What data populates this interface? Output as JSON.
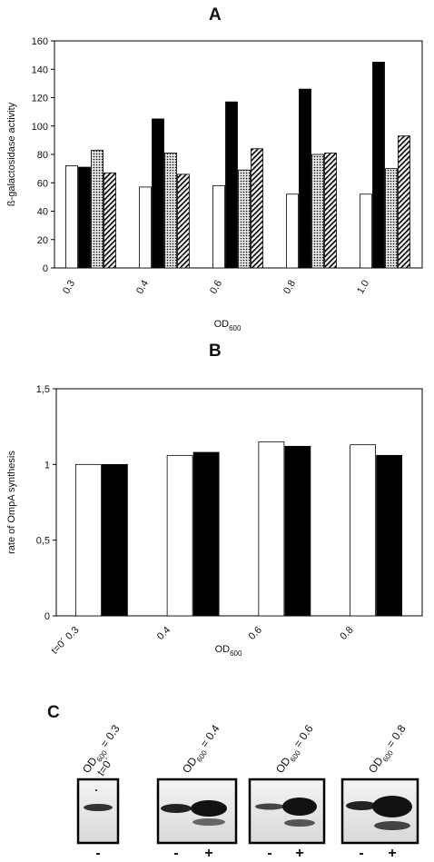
{
  "chart_data": [
    {
      "type": "bar",
      "panel_label": "A",
      "y_label": "ß-galactosidase activity",
      "x_label": [
        "OD",
        "600"
      ],
      "categories": [
        "0.3",
        "0.4",
        "0.6",
        "0.8",
        "1.0"
      ],
      "series": [
        {
          "color": "#ffffff",
          "pattern": "solid",
          "values": [
            72,
            57,
            58,
            52,
            52
          ]
        },
        {
          "color": "#000000",
          "pattern": "solid",
          "values": [
            71,
            105,
            117,
            126,
            145
          ]
        },
        {
          "color": "#9a9a9a",
          "pattern": "dots",
          "values": [
            83,
            81,
            69,
            80,
            70
          ]
        },
        {
          "color": "#555555",
          "pattern": "hatch",
          "values": [
            67,
            66,
            84,
            81,
            93
          ]
        }
      ],
      "ylim": [
        0,
        160
      ],
      "yticks": [
        0,
        20,
        40,
        60,
        80,
        100,
        120,
        140,
        160
      ]
    },
    {
      "type": "bar",
      "panel_label": "B",
      "y_label": "rate of OmpA synthesis",
      "x_label": [
        "OD",
        "600"
      ],
      "categories": [
        "t=0´ 0.3",
        "0.4",
        "0.6",
        "0.8"
      ],
      "series": [
        {
          "color": "#ffffff",
          "pattern": "solid",
          "values": [
            1.0,
            1.06,
            1.15,
            1.13
          ]
        },
        {
          "color": "#000000",
          "pattern": "solid",
          "values": [
            1.0,
            1.08,
            1.12,
            1.06
          ]
        }
      ],
      "ylim": [
        0,
        1.5
      ],
      "yticks": [
        0,
        {
          "value": 0.5,
          "label": "0,5"
        },
        1,
        {
          "value": 1.5,
          "label": "1,5"
        }
      ]
    }
  ],
  "panel_c": {
    "panel_label": "C",
    "blots": [
      {
        "header": [
          "OD",
          "600",
          "= 0.3"
        ],
        "note": "t=0´",
        "lanes": [
          "-"
        ]
      },
      {
        "header": [
          "OD",
          "600",
          "= 0.4"
        ],
        "lanes": [
          "-",
          "+"
        ]
      },
      {
        "header": [
          "OD",
          "600",
          "= 0.6"
        ],
        "lanes": [
          "-",
          "+"
        ]
      },
      {
        "header": [
          "OD",
          "600",
          "= 0.8"
        ],
        "lanes": [
          "-",
          "+"
        ]
      }
    ]
  }
}
